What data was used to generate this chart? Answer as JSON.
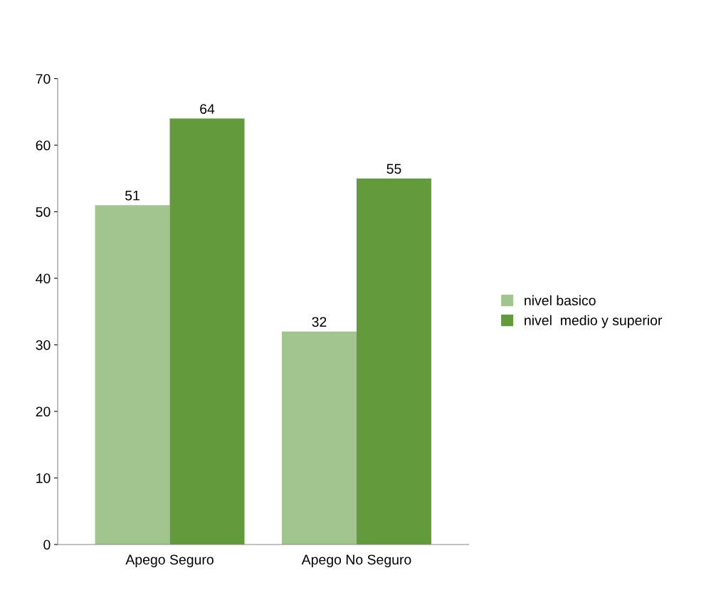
{
  "chart_data": {
    "type": "bar",
    "categories": [
      "Apego Seguro",
      "Apego No Seguro"
    ],
    "series": [
      {
        "name": "nivel basico",
        "color": "#a2c58f",
        "values": [
          51,
          32
        ]
      },
      {
        "name": "nivel  medio y superior",
        "color": "#629a3c",
        "values": [
          64,
          55
        ]
      }
    ],
    "ylim": [
      0,
      70
    ],
    "yticks": [
      0,
      10,
      20,
      30,
      40,
      50,
      60,
      70
    ],
    "data_labels": true,
    "legend": "right",
    "grid": false
  }
}
